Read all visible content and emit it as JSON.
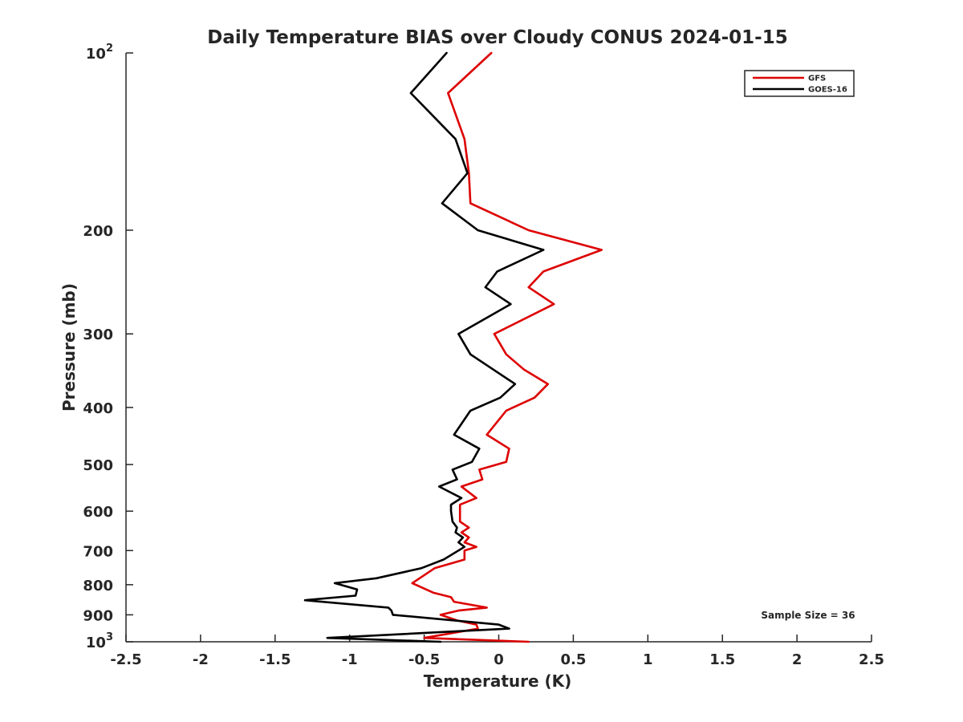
{
  "chart_data": {
    "type": "line",
    "title": "Daily Temperature BIAS over Cloudy CONUS 2024-01-15",
    "xlabel": "Temperature (K)",
    "ylabel": "Pressure (mb)",
    "xlim": [
      -2.5,
      2.5
    ],
    "ylim": [
      1000,
      100
    ],
    "y_scale": "log",
    "y_reversed": true,
    "x_ticks": [
      "-2.5",
      "-2",
      "-1.5",
      "-1",
      "-0.5",
      "0",
      "0.5",
      "1",
      "1.5",
      "2",
      "2.5"
    ],
    "y_ticks": [
      {
        "value": 100,
        "label": "10",
        "exp": "2"
      },
      {
        "value": 200,
        "label": "200"
      },
      {
        "value": 300,
        "label": "300"
      },
      {
        "value": 400,
        "label": "400"
      },
      {
        "value": 500,
        "label": "500"
      },
      {
        "value": 600,
        "label": "600"
      },
      {
        "value": 700,
        "label": "700"
      },
      {
        "value": 800,
        "label": "800"
      },
      {
        "value": 900,
        "label": "900"
      },
      {
        "value": 1000,
        "label": "10",
        "exp": "3"
      }
    ],
    "grid": false,
    "legend_position": "top-right",
    "annotation": "Sample Size = 36",
    "series": [
      {
        "name": "GFS",
        "color": "#dd0000",
        "points": [
          [
            -0.05,
            100
          ],
          [
            -0.34,
            117
          ],
          [
            -0.23,
            140
          ],
          [
            -0.2,
            160
          ],
          [
            -0.19,
            180
          ],
          [
            0.2,
            200
          ],
          [
            0.69,
            216
          ],
          [
            0.3,
            235
          ],
          [
            0.2,
            250
          ],
          [
            0.37,
            267
          ],
          [
            -0.03,
            300
          ],
          [
            0.05,
            325
          ],
          [
            0.17,
            345
          ],
          [
            0.33,
            365
          ],
          [
            0.24,
            385
          ],
          [
            0.05,
            405
          ],
          [
            -0.08,
            445
          ],
          [
            0.07,
            470
          ],
          [
            0.05,
            495
          ],
          [
            -0.13,
            510
          ],
          [
            -0.11,
            530
          ],
          [
            -0.25,
            545
          ],
          [
            -0.15,
            570
          ],
          [
            -0.26,
            585
          ],
          [
            -0.26,
            625
          ],
          [
            -0.2,
            640
          ],
          [
            -0.25,
            652
          ],
          [
            -0.2,
            665
          ],
          [
            -0.23,
            678
          ],
          [
            -0.15,
            690
          ],
          [
            -0.23,
            700
          ],
          [
            -0.23,
            725
          ],
          [
            -0.43,
            750
          ],
          [
            -0.58,
            795
          ],
          [
            -0.44,
            825
          ],
          [
            -0.32,
            840
          ],
          [
            -0.3,
            855
          ],
          [
            -0.08,
            875
          ],
          [
            -0.27,
            885
          ],
          [
            -0.39,
            900
          ],
          [
            -0.28,
            920
          ],
          [
            -0.15,
            935
          ],
          [
            -0.14,
            950
          ],
          [
            -0.5,
            985
          ],
          [
            0.2,
            1000
          ]
        ]
      },
      {
        "name": "GOES-16",
        "color": "#000000",
        "points": [
          [
            -0.35,
            100
          ],
          [
            -0.59,
            117
          ],
          [
            -0.29,
            140
          ],
          [
            -0.21,
            160
          ],
          [
            -0.38,
            180
          ],
          [
            -0.14,
            200
          ],
          [
            0.3,
            216
          ],
          [
            -0.01,
            235
          ],
          [
            -0.09,
            250
          ],
          [
            0.08,
            267
          ],
          [
            -0.27,
            300
          ],
          [
            -0.19,
            325
          ],
          [
            0.11,
            365
          ],
          [
            0.01,
            385
          ],
          [
            -0.19,
            405
          ],
          [
            -0.3,
            445
          ],
          [
            -0.13,
            470
          ],
          [
            -0.18,
            495
          ],
          [
            -0.31,
            510
          ],
          [
            -0.28,
            530
          ],
          [
            -0.4,
            545
          ],
          [
            -0.25,
            570
          ],
          [
            -0.32,
            585
          ],
          [
            -0.32,
            600
          ],
          [
            -0.31,
            625
          ],
          [
            -0.28,
            640
          ],
          [
            -0.29,
            652
          ],
          [
            -0.24,
            665
          ],
          [
            -0.27,
            678
          ],
          [
            -0.23,
            690
          ],
          [
            -0.37,
            725
          ],
          [
            -0.52,
            750
          ],
          [
            -0.82,
            780
          ],
          [
            -1.1,
            795
          ],
          [
            -0.95,
            815
          ],
          [
            -0.96,
            835
          ],
          [
            -1.3,
            850
          ],
          [
            -0.74,
            875
          ],
          [
            -0.72,
            885
          ],
          [
            -0.71,
            900
          ],
          [
            0.0,
            935
          ],
          [
            0.07,
            950
          ],
          [
            -1.15,
            985
          ],
          [
            -0.39,
            1000
          ]
        ]
      }
    ]
  }
}
